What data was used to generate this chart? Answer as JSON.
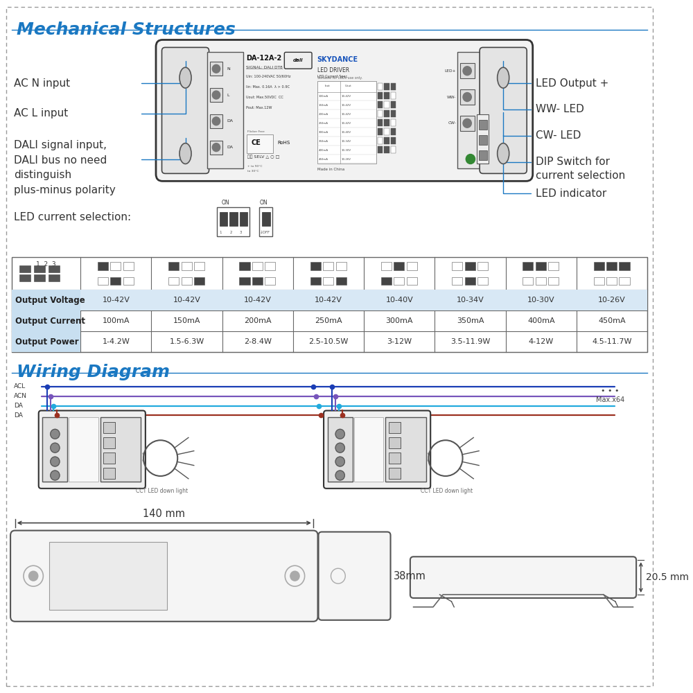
{
  "title_mechanical": "Mechanical Structures",
  "title_wiring": "Wiring Diagram",
  "title_color": "#1a78c2",
  "background_color": "#ffffff",
  "left_labels": [
    "AC N input",
    "AC L input",
    "DALI signal input,",
    "DALI bus no need",
    "distinguish",
    "plus-minus polarity"
  ],
  "right_labels": [
    "LED Output +",
    "WW- LED",
    "CW- LED",
    "DIP Switch for",
    "current selection",
    "LED indicator"
  ],
  "table_row_labels": [
    "Output Voltage",
    "Output Current",
    "Output Power"
  ],
  "table_voltages": [
    "10-42V",
    "10-42V",
    "10-42V",
    "10-42V",
    "10-40V",
    "10-34V",
    "10-30V",
    "10-26V"
  ],
  "table_currents": [
    "100mA",
    "150mA",
    "200mA",
    "250mA",
    "300mA",
    "350mA",
    "400mA",
    "450mA"
  ],
  "table_powers": [
    "1-4.2W",
    "1.5-6.3W",
    "2-8.4W",
    "2.5-10.5W",
    "3-12W",
    "3.5-11.9W",
    "4-12W",
    "4.5-11.7W"
  ],
  "dim_140": "140 mm",
  "dim_38": "38mm",
  "dim_205": "20.5 mm",
  "wiring_labels": [
    "ACL",
    "ACN",
    "DA",
    "DA"
  ],
  "wiring_note": "Max.x64",
  "led_current_label": "LED current selection:",
  "cct_label": "CCT LED down light",
  "wire_colors": [
    "#1a3db5",
    "#7755bb",
    "#22aadd",
    "#9b3020"
  ],
  "line_color": "#1a78c2",
  "table_header_bg": "#c8dff0",
  "table_voltage_bg": "#d8e8f5"
}
